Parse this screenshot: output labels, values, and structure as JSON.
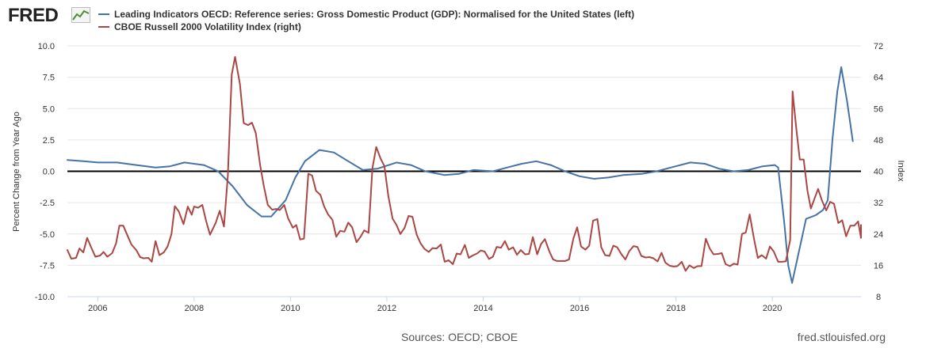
{
  "header": {
    "logo_text": "FRED",
    "logo_icon": "fred-chart-icon"
  },
  "footer": {
    "sources": "Sources: OECD; CBOE",
    "site": "fred.stlouisfed.org"
  },
  "colors": {
    "series_left": "#4572a7",
    "series_right": "#aa4643",
    "zero_line": "#000000",
    "grid": "#e6e6e6"
  },
  "chart_data": {
    "type": "line",
    "legend_position": "top-left",
    "grid": true,
    "x_ticks": [
      "2006",
      "2008",
      "2010",
      "2012",
      "2014",
      "2016",
      "2018",
      "2020"
    ],
    "x_range": [
      2005.37,
      2021.84
    ],
    "y_left": {
      "label": "Percent Change from Year Ago",
      "range": [
        -10,
        10
      ],
      "ticks": [
        "10.0",
        "7.5",
        "5.0",
        "2.5",
        "0.0",
        "-2.5",
        "-5.0",
        "-7.5",
        "-10.0"
      ]
    },
    "y_right": {
      "label": "Index",
      "range": [
        8,
        72
      ],
      "ticks": [
        "72",
        "64",
        "56",
        "48",
        "40",
        "32",
        "24",
        "16",
        "8"
      ]
    },
    "series": [
      {
        "name": "Leading Indicators OECD: Reference series: Gross Domestic Product (GDP): Normalised for the United States (left)",
        "axis": "left",
        "points": [
          [
            2005.37,
            0.9
          ],
          [
            2005.7,
            0.8
          ],
          [
            2006.0,
            0.7
          ],
          [
            2006.4,
            0.7
          ],
          [
            2006.8,
            0.5
          ],
          [
            2007.2,
            0.3
          ],
          [
            2007.5,
            0.4
          ],
          [
            2007.8,
            0.7
          ],
          [
            2008.2,
            0.5
          ],
          [
            2008.5,
            0.0
          ],
          [
            2008.8,
            -1.2
          ],
          [
            2009.1,
            -2.7
          ],
          [
            2009.4,
            -3.6
          ],
          [
            2009.6,
            -3.6
          ],
          [
            2009.9,
            -2.3
          ],
          [
            2010.1,
            -0.5
          ],
          [
            2010.3,
            0.8
          ],
          [
            2010.6,
            1.7
          ],
          [
            2010.9,
            1.5
          ],
          [
            2011.2,
            0.8
          ],
          [
            2011.5,
            0.1
          ],
          [
            2011.8,
            0.2
          ],
          [
            2012.2,
            0.7
          ],
          [
            2012.5,
            0.5
          ],
          [
            2012.8,
            0.0
          ],
          [
            2013.2,
            -0.3
          ],
          [
            2013.5,
            -0.2
          ],
          [
            2013.8,
            0.1
          ],
          [
            2014.2,
            0.0
          ],
          [
            2014.5,
            0.3
          ],
          [
            2014.8,
            0.6
          ],
          [
            2015.1,
            0.8
          ],
          [
            2015.4,
            0.5
          ],
          [
            2015.7,
            0.0
          ],
          [
            2016.0,
            -0.4
          ],
          [
            2016.3,
            -0.6
          ],
          [
            2016.6,
            -0.5
          ],
          [
            2016.9,
            -0.3
          ],
          [
            2017.3,
            -0.2
          ],
          [
            2017.6,
            0.0
          ],
          [
            2017.9,
            0.3
          ],
          [
            2018.3,
            0.7
          ],
          [
            2018.6,
            0.6
          ],
          [
            2018.9,
            0.2
          ],
          [
            2019.2,
            0.0
          ],
          [
            2019.5,
            0.1
          ],
          [
            2019.8,
            0.4
          ],
          [
            2020.05,
            0.5
          ],
          [
            2020.12,
            0.3
          ],
          [
            2020.25,
            -4.2
          ],
          [
            2020.33,
            -7.5
          ],
          [
            2020.41,
            -8.9
          ],
          [
            2020.7,
            -3.8
          ],
          [
            2020.9,
            -3.5
          ],
          [
            2021.05,
            -3.1
          ],
          [
            2021.15,
            -2.3
          ],
          [
            2021.25,
            2.6
          ],
          [
            2021.35,
            6.4
          ],
          [
            2021.43,
            8.3
          ],
          [
            2021.55,
            5.6
          ],
          [
            2021.67,
            2.4
          ]
        ]
      },
      {
        "name": "CBOE Russell 2000 Volatility Index (right)",
        "axis": "right",
        "points": [
          [
            2005.37,
            19.9
          ],
          [
            2005.45,
            17.7
          ],
          [
            2005.55,
            17.9
          ],
          [
            2005.62,
            20.3
          ],
          [
            2005.7,
            19.3
          ],
          [
            2005.78,
            23.0
          ],
          [
            2005.87,
            20.4
          ],
          [
            2005.95,
            18.2
          ],
          [
            2006.05,
            18.5
          ],
          [
            2006.12,
            19.4
          ],
          [
            2006.2,
            18.2
          ],
          [
            2006.3,
            19.1
          ],
          [
            2006.38,
            21.6
          ],
          [
            2006.45,
            26.1
          ],
          [
            2006.53,
            26.1
          ],
          [
            2006.62,
            23.5
          ],
          [
            2006.7,
            21.3
          ],
          [
            2006.8,
            19.9
          ],
          [
            2006.88,
            18.1
          ],
          [
            2006.95,
            17.8
          ],
          [
            2007.05,
            17.9
          ],
          [
            2007.12,
            16.9
          ],
          [
            2007.2,
            22.2
          ],
          [
            2007.28,
            18.6
          ],
          [
            2007.37,
            19.3
          ],
          [
            2007.45,
            20.8
          ],
          [
            2007.53,
            24.0
          ],
          [
            2007.6,
            31.1
          ],
          [
            2007.68,
            29.8
          ],
          [
            2007.78,
            26.5
          ],
          [
            2007.87,
            31.0
          ],
          [
            2007.95,
            28.9
          ],
          [
            2008.0,
            31.0
          ],
          [
            2008.08,
            30.7
          ],
          [
            2008.17,
            31.4
          ],
          [
            2008.25,
            27.3
          ],
          [
            2008.33,
            23.8
          ],
          [
            2008.45,
            26.9
          ],
          [
            2008.53,
            29.9
          ],
          [
            2008.62,
            25.9
          ],
          [
            2008.7,
            38.9
          ],
          [
            2008.78,
            64.7
          ],
          [
            2008.85,
            69.2
          ],
          [
            2008.95,
            62.3
          ],
          [
            2009.03,
            52.3
          ],
          [
            2009.12,
            51.8
          ],
          [
            2009.2,
            52.4
          ],
          [
            2009.28,
            49.8
          ],
          [
            2009.37,
            41.6
          ],
          [
            2009.45,
            36.0
          ],
          [
            2009.53,
            31.4
          ],
          [
            2009.62,
            30.2
          ],
          [
            2009.7,
            30.4
          ],
          [
            2009.78,
            30.1
          ],
          [
            2009.87,
            31.4
          ],
          [
            2009.95,
            28.0
          ],
          [
            2010.05,
            25.6
          ],
          [
            2010.12,
            26.3
          ],
          [
            2010.2,
            22.6
          ],
          [
            2010.28,
            22.8
          ],
          [
            2010.37,
            39.4
          ],
          [
            2010.45,
            38.9
          ],
          [
            2010.53,
            35.0
          ],
          [
            2010.62,
            34.0
          ],
          [
            2010.7,
            31.0
          ],
          [
            2010.78,
            29.0
          ],
          [
            2010.87,
            27.6
          ],
          [
            2010.95,
            23.3
          ],
          [
            2011.03,
            24.8
          ],
          [
            2011.12,
            24.6
          ],
          [
            2011.2,
            26.9
          ],
          [
            2011.28,
            25.7
          ],
          [
            2011.37,
            21.9
          ],
          [
            2011.45,
            23.2
          ],
          [
            2011.53,
            24.9
          ],
          [
            2011.62,
            24.3
          ],
          [
            2011.7,
            40.7
          ],
          [
            2011.78,
            46.2
          ],
          [
            2011.87,
            43.2
          ],
          [
            2011.95,
            41.3
          ],
          [
            2012.03,
            33.7
          ],
          [
            2012.12,
            27.9
          ],
          [
            2012.2,
            26.3
          ],
          [
            2012.28,
            24.0
          ],
          [
            2012.37,
            25.6
          ],
          [
            2012.45,
            28.6
          ],
          [
            2012.53,
            28.4
          ],
          [
            2012.62,
            23.8
          ],
          [
            2012.7,
            21.6
          ],
          [
            2012.78,
            20.2
          ],
          [
            2012.87,
            19.4
          ],
          [
            2012.95,
            20.4
          ],
          [
            2013.03,
            20.3
          ],
          [
            2013.12,
            21.3
          ],
          [
            2013.2,
            16.9
          ],
          [
            2013.28,
            17.3
          ],
          [
            2013.37,
            16.3
          ],
          [
            2013.45,
            19.0
          ],
          [
            2013.53,
            18.8
          ],
          [
            2013.62,
            21.2
          ],
          [
            2013.7,
            17.9
          ],
          [
            2013.78,
            18.5
          ],
          [
            2013.87,
            19.0
          ],
          [
            2013.95,
            19.8
          ],
          [
            2014.03,
            19.5
          ],
          [
            2014.12,
            17.6
          ],
          [
            2014.2,
            18.2
          ],
          [
            2014.28,
            20.7
          ],
          [
            2014.37,
            20.5
          ],
          [
            2014.45,
            22.2
          ],
          [
            2014.53,
            20.0
          ],
          [
            2014.62,
            20.6
          ],
          [
            2014.7,
            18.7
          ],
          [
            2014.78,
            19.9
          ],
          [
            2014.87,
            18.8
          ],
          [
            2014.95,
            18.9
          ],
          [
            2015.03,
            23.2
          ],
          [
            2015.12,
            18.8
          ],
          [
            2015.2,
            21.4
          ],
          [
            2015.28,
            22.7
          ],
          [
            2015.37,
            19.6
          ],
          [
            2015.45,
            17.5
          ],
          [
            2015.53,
            17.1
          ],
          [
            2015.62,
            17.1
          ],
          [
            2015.7,
            17.1
          ],
          [
            2015.78,
            17.5
          ],
          [
            2015.87,
            22.8
          ],
          [
            2015.95,
            25.7
          ],
          [
            2016.03,
            20.8
          ],
          [
            2016.12,
            20.0
          ],
          [
            2016.2,
            21.0
          ],
          [
            2016.28,
            27.4
          ],
          [
            2016.37,
            27.8
          ],
          [
            2016.45,
            20.6
          ],
          [
            2016.53,
            18.6
          ],
          [
            2016.62,
            18.4
          ],
          [
            2016.7,
            21.0
          ],
          [
            2016.78,
            20.6
          ],
          [
            2016.87,
            18.8
          ],
          [
            2016.95,
            17.5
          ],
          [
            2017.03,
            19.6
          ],
          [
            2017.12,
            20.9
          ],
          [
            2017.2,
            20.7
          ],
          [
            2017.28,
            18.4
          ],
          [
            2017.37,
            18.0
          ],
          [
            2017.45,
            18.1
          ],
          [
            2017.53,
            17.8
          ],
          [
            2017.62,
            17.0
          ],
          [
            2017.7,
            19.2
          ],
          [
            2017.78,
            16.7
          ],
          [
            2017.87,
            15.9
          ],
          [
            2017.95,
            15.7
          ],
          [
            2018.03,
            15.8
          ],
          [
            2018.12,
            16.9
          ],
          [
            2018.2,
            14.6
          ],
          [
            2018.28,
            16.0
          ],
          [
            2018.37,
            15.3
          ],
          [
            2018.45,
            15.8
          ],
          [
            2018.53,
            15.8
          ],
          [
            2018.62,
            22.8
          ],
          [
            2018.7,
            20.3
          ],
          [
            2018.78,
            18.8
          ],
          [
            2018.87,
            18.9
          ],
          [
            2018.95,
            19.1
          ],
          [
            2019.03,
            16.3
          ],
          [
            2019.12,
            15.8
          ],
          [
            2019.2,
            16.4
          ],
          [
            2019.28,
            16.2
          ],
          [
            2019.37,
            24.0
          ],
          [
            2019.45,
            24.4
          ],
          [
            2019.53,
            29.0
          ],
          [
            2019.62,
            22.7
          ],
          [
            2019.7,
            17.9
          ],
          [
            2019.78,
            18.6
          ],
          [
            2019.87,
            17.7
          ],
          [
            2019.95,
            20.8
          ],
          [
            2020.03,
            19.5
          ],
          [
            2020.12,
            16.9
          ],
          [
            2020.2,
            16.9
          ],
          [
            2020.28,
            17.0
          ],
          [
            2020.37,
            22.5
          ],
          [
            2020.42,
            60.4
          ],
          [
            2020.5,
            50.5
          ],
          [
            2020.57,
            43.0
          ],
          [
            2020.65,
            43.0
          ],
          [
            2020.73,
            35.0
          ],
          [
            2020.8,
            30.5
          ],
          [
            2020.88,
            33.2
          ],
          [
            2020.95,
            35.5
          ],
          [
            2021.03,
            32.5
          ],
          [
            2021.12,
            30.0
          ],
          [
            2021.2,
            32.2
          ],
          [
            2021.28,
            31.7
          ],
          [
            2021.37,
            26.8
          ],
          [
            2021.45,
            27.5
          ],
          [
            2021.53,
            23.4
          ],
          [
            2021.62,
            26.1
          ],
          [
            2021.7,
            26.1
          ],
          [
            2021.78,
            27.2
          ],
          [
            2021.84,
            23.0
          ],
          [
            2021.84,
            26.3
          ]
        ]
      }
    ]
  }
}
